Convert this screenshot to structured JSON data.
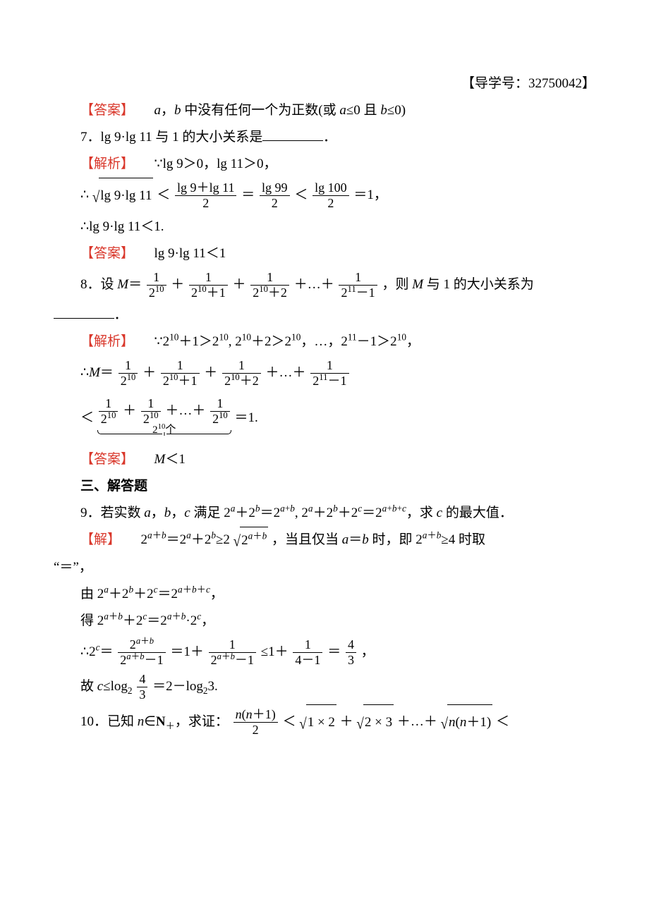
{
  "colors": {
    "accent_red": "#d9372b",
    "text": "#000000",
    "background": "#ffffff"
  },
  "typography": {
    "body_fontsize_pt": 14,
    "sup_scale": 0.7,
    "line_height": 2.0,
    "font_family": "SimSun / Times New Roman"
  },
  "header_right": "【导学号：32750042】",
  "labels": {
    "answer": "【答案】",
    "analysis": "【解析】",
    "solution": "【解】"
  },
  "q6_answer": {
    "text_prefix": "a，b 中没有任何一个为正数(或 a≤0 且 b≤0)"
  },
  "q7": {
    "stem": "7．lg 9·lg 11 与 1 的大小关系是",
    "analysis_l1": "∵lg 9＞0，lg 11＞0，",
    "analysis_l2_prefix": "∴",
    "analysis_l2_mid1": "＜",
    "frac1": {
      "num": "lg 9＋lg 11",
      "den": "2"
    },
    "analysis_l2_eq1": "＝",
    "frac2": {
      "num": "lg 99",
      "den": "2"
    },
    "analysis_l2_lt2": "＜",
    "frac3": {
      "num": "lg 100",
      "den": "2"
    },
    "analysis_l2_tail": "＝1，",
    "analysis_l3": "∴lg 9·lg 11＜1.",
    "answer": "lg 9·lg 11＜1",
    "sqrt_body": "lg 9·lg 11"
  },
  "q8": {
    "stem_prefix": "8．设 ",
    "stem_Meq": "M＝",
    "t1": {
      "num": "1",
      "den": "2^{10}"
    },
    "plus": "＋",
    "t2": {
      "num": "1",
      "den": "2^{10}＋1"
    },
    "t3": {
      "num": "1",
      "den": "2^{10}＋2"
    },
    "dots": "＋…＋",
    "t4": {
      "num": "1",
      "den": "2^{11}－1"
    },
    "stem_tail": "，则 M 与 1 的大小关系为",
    "analysis_l1": "∵2^{10}＋1＞2^{10}, 2^{10}＋2＞2^{10}，…，2^{11}－1＞2^{10}，",
    "analysis_l2_prefix": "∴M＝",
    "analysis_l3_lt": "＜",
    "brace_label": "2^{10}个",
    "analysis_l3_tail": "＝1.",
    "answer": "M＜1"
  },
  "section3": "三、解答题",
  "q9": {
    "stem": "9．若实数 a，b，c 满足 2^a＋2^b＝2^{a+b}, 2^a＋2^b＋2^c＝2^{a+b+c}，求 c 的最大值．",
    "sol_l1_a": "2^{a＋b}＝2^a＋2^b≥2",
    "sol_l1_sqrt": "2^{a＋b}",
    "sol_l1_b": "，当且仅当 a＝b 时，即 2^{a＋b}≥4 时取",
    "sol_l1_c": "“＝”，",
    "sol_l2": "由 2^a＋2^b＋2^c＝2^{a＋b＋c}，",
    "sol_l3": "得 2^{a＋b}＋2^c＝2^{a＋b}·2^c，",
    "sol_l4_prefix": "∴2^c＝",
    "frac_a": {
      "num": "2^{a＋b}",
      "den": "2^{a＋b}－1"
    },
    "sol_l4_mid1": "＝1＋",
    "frac_b": {
      "num": "1",
      "den": "2^{a＋b}－1"
    },
    "sol_l4_mid2": "≤1＋",
    "frac_c": {
      "num": "1",
      "den": "4－1"
    },
    "sol_l4_mid3": "＝",
    "frac_d": {
      "num": "4",
      "den": "3"
    },
    "sol_l4_tail": "，",
    "sol_l5_prefix": "故 c≤log",
    "sol_l5_sub": "2",
    "frac_e": {
      "num": "4",
      "den": "3"
    },
    "sol_l5_tail": "＝2－log₂3."
  },
  "q10": {
    "stem_prefix": "10．已知 n∈N₊，求证：",
    "frac": {
      "num": "n(n＋1)",
      "den": "2"
    },
    "lt1": "＜",
    "s1": "1 × 2",
    "plus": "＋",
    "s2": "2 × 3",
    "dots": "＋…＋",
    "sN": "n(n＋1)",
    "tail_lt": "＜"
  }
}
